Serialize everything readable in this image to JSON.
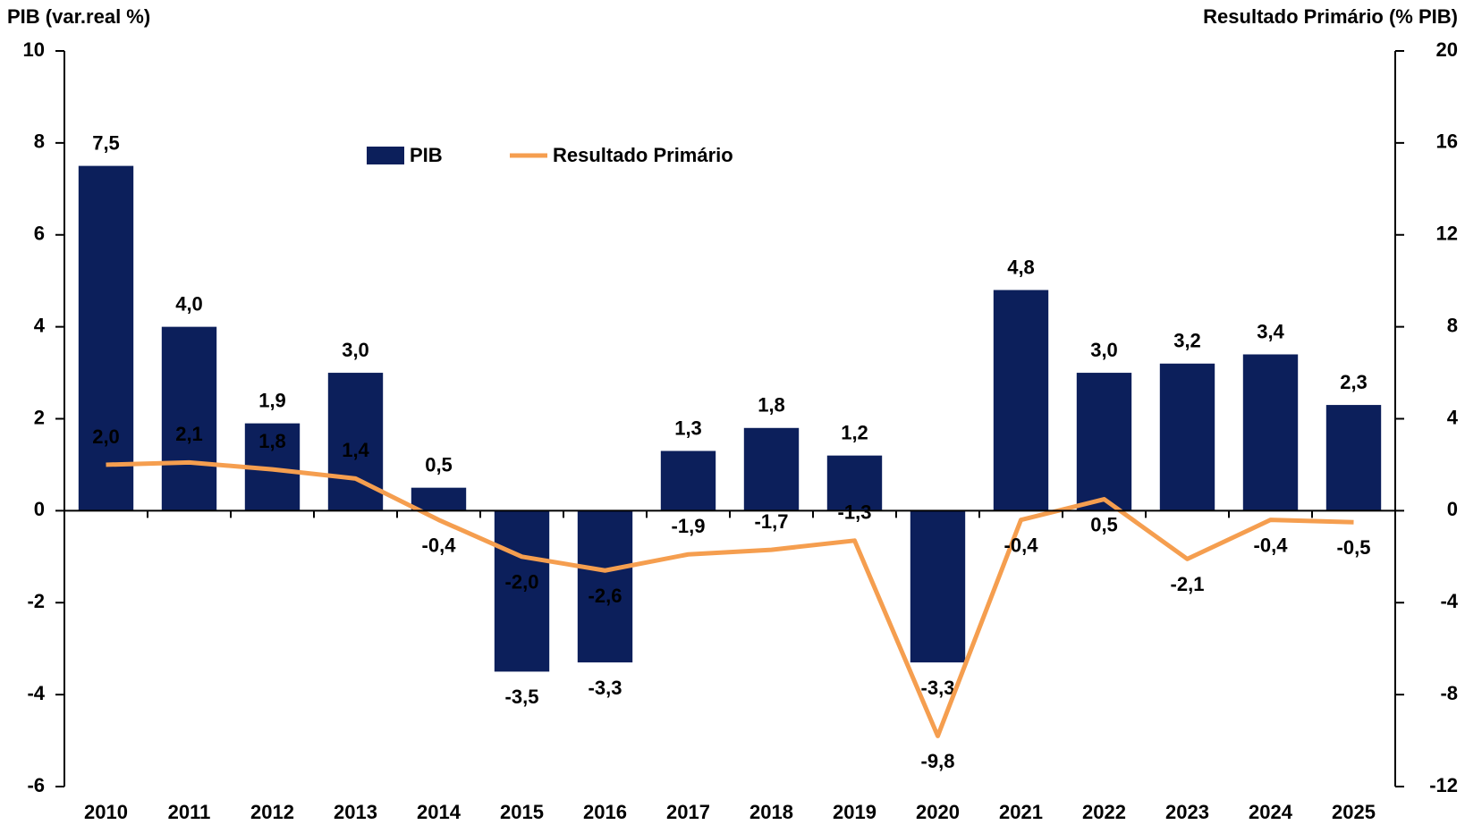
{
  "chart_data": {
    "type": "bar-line",
    "y_label": "PIB (var.real %)",
    "y2_label": "Resultado Primário (% PIB)",
    "categories": [
      "2010",
      "2011",
      "2012",
      "2013",
      "2014",
      "2015",
      "2016",
      "2017",
      "2018",
      "2019",
      "2020",
      "2021",
      "2022",
      "2023",
      "2024",
      "2025"
    ],
    "series": [
      {
        "name": "PIB",
        "type": "bar",
        "color": "#0c1f5b",
        "label_color": "#3a3c9c",
        "values": [
          7.5,
          4.0,
          1.9,
          3.0,
          0.5,
          -3.5,
          -3.3,
          1.3,
          1.8,
          1.2,
          -3.3,
          4.8,
          3.0,
          3.2,
          3.4,
          2.3
        ],
        "value_labels": [
          "7,5",
          "4,0",
          "1,9",
          "3,0",
          "0,5",
          "-3,5",
          "-3,3",
          "1,3",
          "1,8",
          "1,2",
          "-3,3",
          "4,8",
          "3,0",
          "3,2",
          "3,4",
          "2,3"
        ]
      },
      {
        "name": "Resultado Primário",
        "type": "line",
        "axis": "y2",
        "color": "#f59e4f",
        "label_color": "#e87d1e",
        "values": [
          2.0,
          2.1,
          1.8,
          1.4,
          -0.4,
          -2.0,
          -2.6,
          -1.9,
          -1.7,
          -1.3,
          -9.8,
          -0.4,
          0.5,
          -2.1,
          -0.4,
          -0.5
        ],
        "value_labels": [
          "2,0",
          "2,1",
          "1,8",
          "1,4",
          "-0,4",
          "-2,0",
          "-2,6",
          "-1,9",
          "-1,7",
          "-1,3",
          "-9,8",
          "-0,4",
          "0,5",
          "-2,1",
          "-0,4",
          "-0,5"
        ]
      }
    ],
    "ylim": [
      -6,
      10
    ],
    "yticks": [
      -6,
      -4,
      -2,
      0,
      2,
      4,
      6,
      8,
      10
    ],
    "y2lim": [
      -12,
      20
    ],
    "y2ticks": [
      -12,
      -8,
      -4,
      0,
      4,
      8,
      12,
      16,
      20
    ]
  }
}
